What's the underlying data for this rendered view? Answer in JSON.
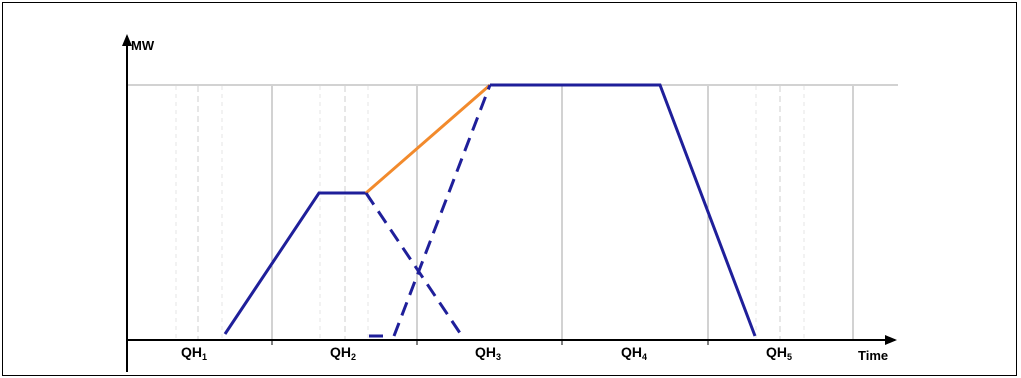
{
  "axes": {
    "y_label": "MW",
    "x_label": "Time"
  },
  "periods": [
    {
      "label": "QH",
      "sub": "1"
    },
    {
      "label": "QH",
      "sub": "2"
    },
    {
      "label": "QH",
      "sub": "3"
    },
    {
      "label": "QH",
      "sub": "4"
    },
    {
      "label": "QH",
      "sub": "5"
    }
  ],
  "colors": {
    "profile": "#1f1f9a",
    "ramp_highlight": "#f28a2c",
    "grid_major": "#a6a6a6",
    "grid_minor": "#d0d0d0"
  }
}
